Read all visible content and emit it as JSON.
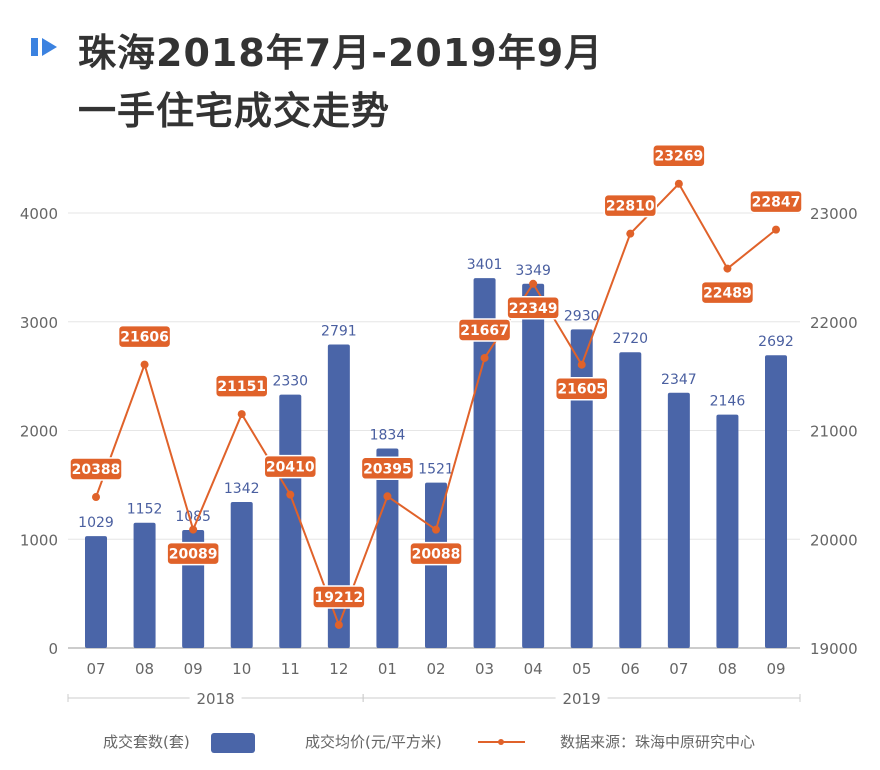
{
  "title_line1": "珠海2018年7月-2019年9月",
  "title_line2": "一手住宅成交走势",
  "colors": {
    "bar": "#4a65a8",
    "line": "#e0622a",
    "bar_label": "#4a5fa0",
    "axis_text": "#666",
    "grid": "#e6e6e6"
  },
  "chart_data": {
    "type": "bar+line",
    "categories": [
      "07",
      "08",
      "09",
      "10",
      "11",
      "12",
      "01",
      "02",
      "03",
      "04",
      "05",
      "06",
      "07",
      "08",
      "09"
    ],
    "year_groups": [
      {
        "label": "2018",
        "count": 6
      },
      {
        "label": "2019",
        "count": 9
      }
    ],
    "series": [
      {
        "name": "成交套数(套)",
        "type": "bar",
        "axis": "left",
        "values": [
          1029,
          1152,
          1085,
          1342,
          2330,
          2791,
          1834,
          1521,
          3401,
          3349,
          2930,
          2720,
          2347,
          2146,
          2692
        ]
      },
      {
        "name": "成交均价(元/平方米)",
        "type": "line",
        "axis": "right",
        "values": [
          20388,
          21606,
          20089,
          21151,
          20410,
          19212,
          20395,
          20088,
          21667,
          22349,
          21605,
          22810,
          23269,
          22489,
          22847
        ]
      }
    ],
    "left_axis": {
      "ylim": [
        0,
        4000
      ],
      "ticks": [
        0,
        1000,
        2000,
        3000,
        4000
      ]
    },
    "right_axis": {
      "ylim": [
        19000,
        23000
      ],
      "ticks": [
        19000,
        20000,
        21000,
        22000,
        23000
      ]
    },
    "grid": true,
    "legend_position": "bottom",
    "source": "数据来源：珠海中原研究中心"
  }
}
